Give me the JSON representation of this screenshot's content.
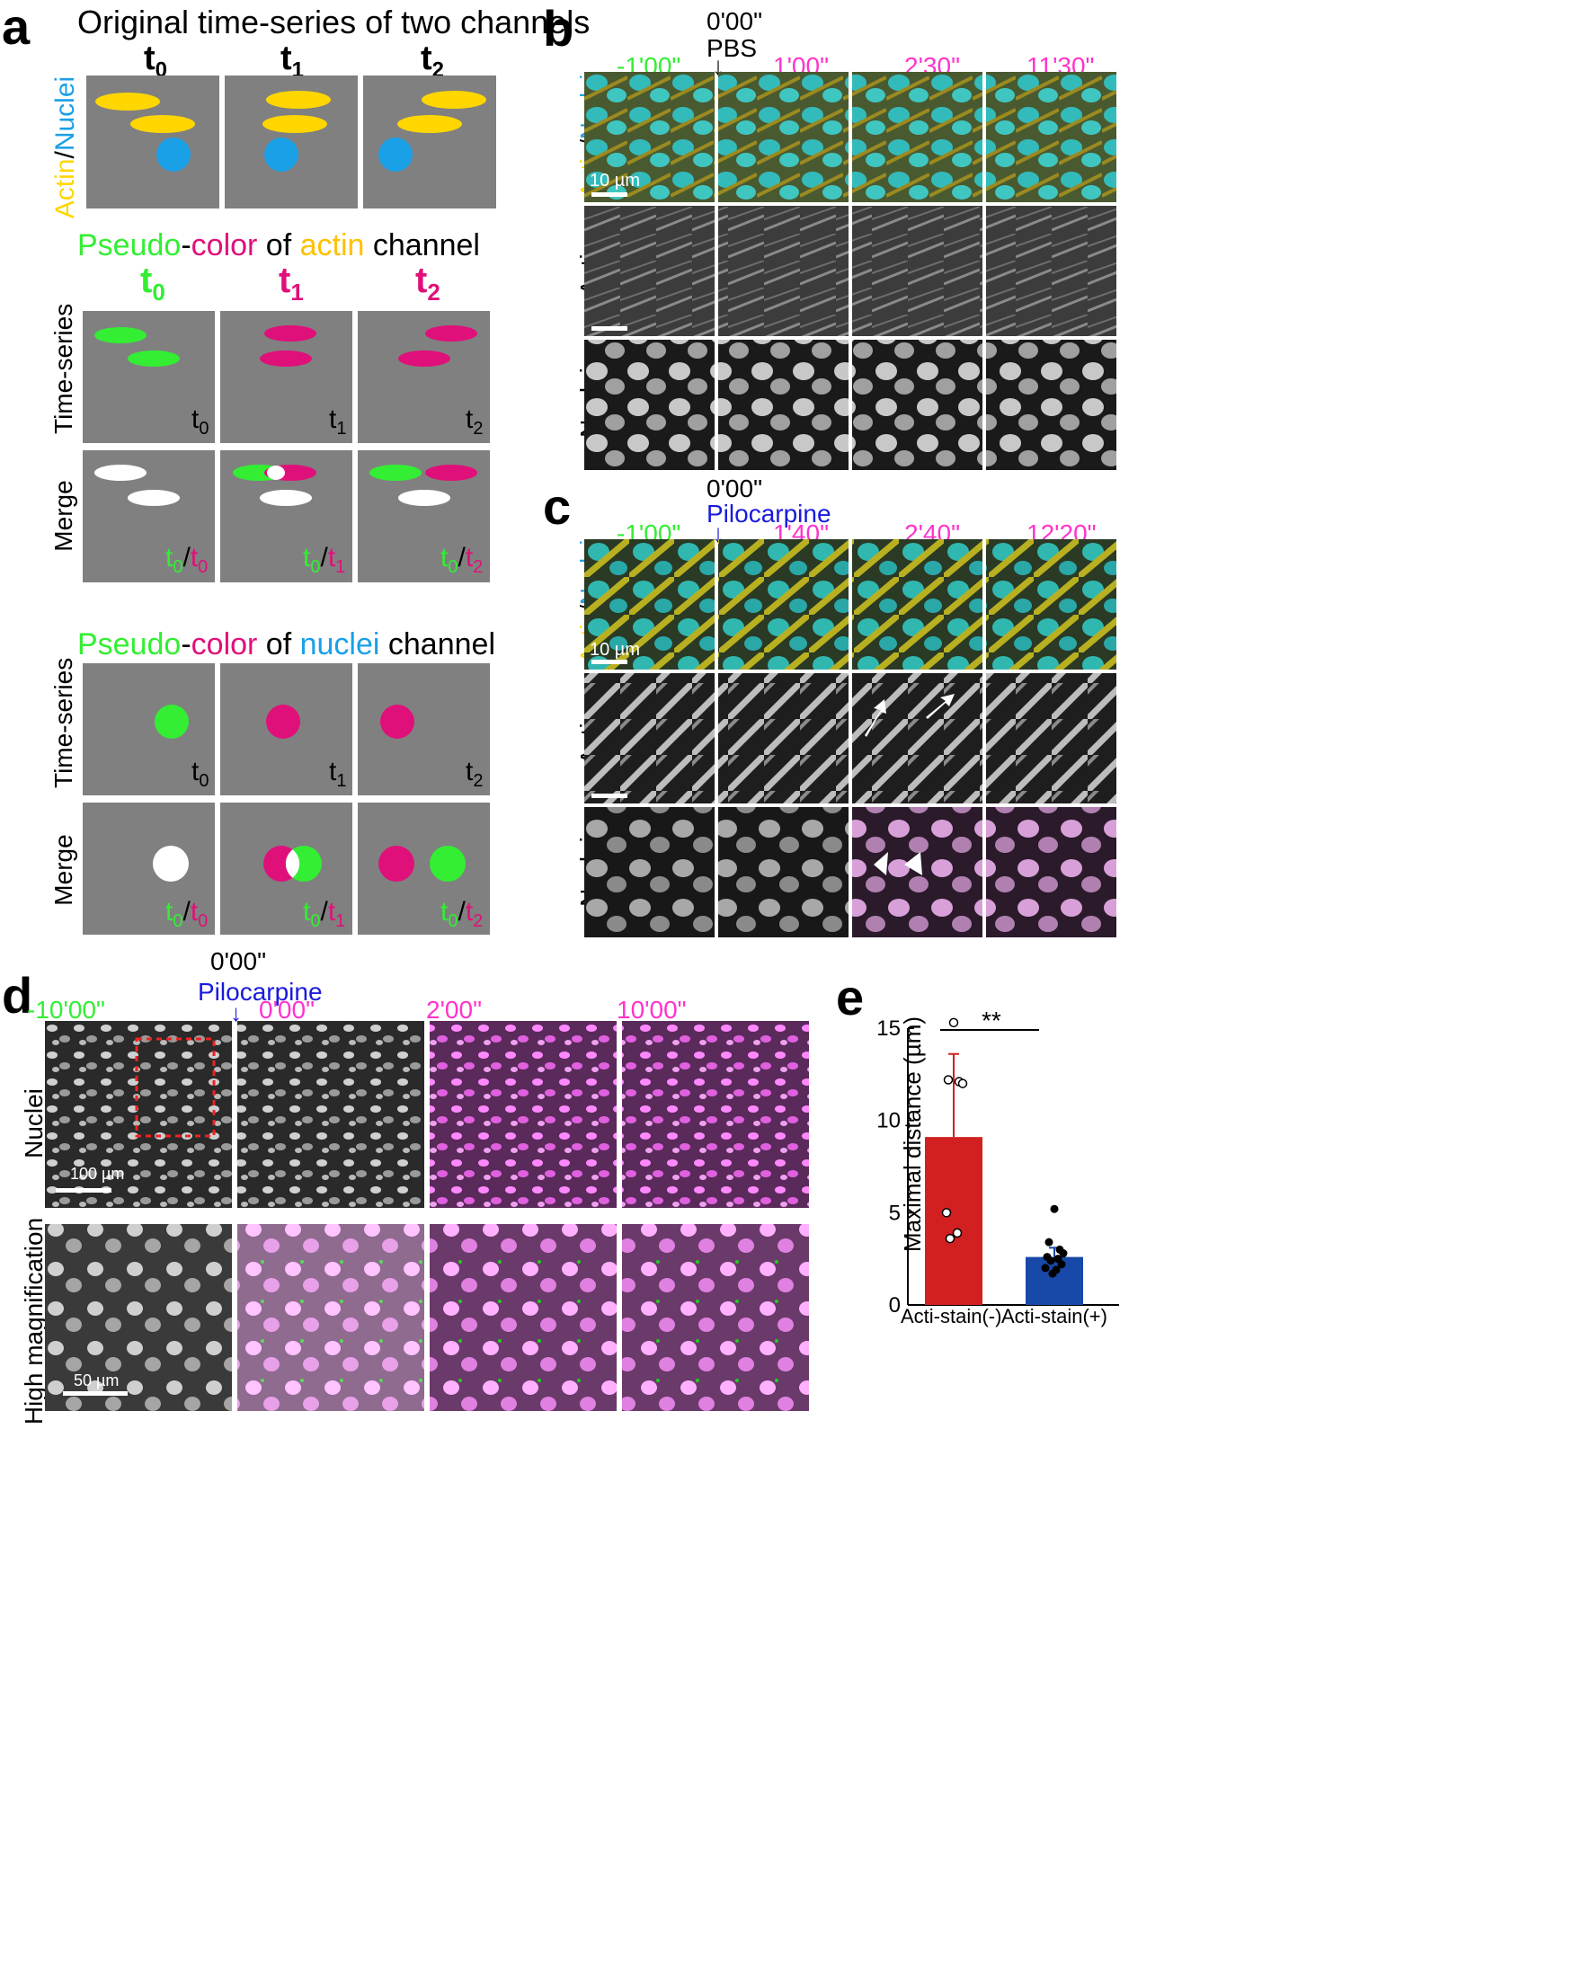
{
  "panel_a": {
    "letter": "a",
    "section1_title": "Original time-series of two channels",
    "time_labels": [
      "t",
      "t",
      "t"
    ],
    "time_subs": [
      "0",
      "1",
      "2"
    ],
    "ylabel_actin": "Actin",
    "ylabel_slash": "/",
    "ylabel_nuclei": "Nuclei",
    "section2_title": {
      "pseudo": "Pseudo",
      "dash": "-",
      "color": "color",
      "of": " of ",
      "channel_name": "actin",
      "channel": " channel"
    },
    "section3_title": {
      "pseudo": "Pseudo",
      "dash": "-",
      "color": "color",
      "of": " of ",
      "channel_name": "nuclei",
      "channel": " channel"
    },
    "row_labels": [
      "Time-series",
      "Merge"
    ],
    "corner_labels": [
      "t",
      "t",
      "t"
    ],
    "merge_labels": [
      {
        "a": "t",
        "as": "0",
        "sep": "/",
        "b": "t",
        "bs": "0"
      },
      {
        "a": "t",
        "as": "0",
        "sep": "/",
        "b": "t",
        "bs": "1"
      },
      {
        "a": "t",
        "as": "0",
        "sep": "/",
        "b": "t",
        "bs": "2"
      }
    ],
    "colors": {
      "actin": "#ffd600",
      "nuclei": "#1aa0e6",
      "green": "#33ee33",
      "magenta": "#e0107a",
      "panel": "#808080"
    }
  },
  "panel_b": {
    "letter": "b",
    "event_time": "0'00\"",
    "event": "PBS",
    "times": [
      "-1'00\"",
      "1'00\"",
      "2'30\"",
      "11'30\""
    ],
    "rows": [
      "Actin",
      "Nuclei"
    ],
    "merge_label": {
      "actin": "Actin",
      "slash": "/",
      "nuclei": "Nuclei"
    },
    "scale_bar": "10 µm"
  },
  "panel_c": {
    "letter": "c",
    "event_time": "0'00\"",
    "event": "Pilocarpine",
    "times": [
      "-1'00\"",
      "1'40\"",
      "2'40\"",
      "12'20\""
    ],
    "rows": [
      "Actin",
      "Nuclei"
    ],
    "merge_label": {
      "actin": "Actin",
      "slash": "/",
      "nuclei": "Nuclei"
    },
    "scale_bar": "10 µm"
  },
  "panel_d": {
    "letter": "d",
    "event_time": "0'00\"",
    "event": "Pilocarpine",
    "times": [
      "-10'00\"",
      "0'00\"",
      "2'00\"",
      "10'00\""
    ],
    "rows": [
      "Nuclei",
      "High magnification"
    ],
    "scale_bar_1": "100 µm",
    "scale_bar_2": "50 µm"
  },
  "panel_e": {
    "letter": "e",
    "significance": "**",
    "chart_data": {
      "type": "bar",
      "categories": [
        "Acti-stain(-)",
        "Acti-stain(+)"
      ],
      "values": [
        9.1,
        2.6
      ],
      "errors": [
        4.5,
        0.5
      ],
      "points": [
        [
          15.3,
          12.2,
          12.1,
          12.0,
          5.0,
          3.9,
          3.6
        ],
        [
          5.2,
          3.4,
          3.0,
          2.8,
          2.6,
          2.5,
          2.4,
          2.2,
          2.0,
          1.9,
          1.7
        ]
      ],
      "bar_colors": [
        "#d21f1f",
        "#1848a8"
      ],
      "ylabel": "Maximal distance  (µm)",
      "ylim": [
        0,
        15
      ],
      "yticks": [
        "0",
        "5",
        "10",
        "15"
      ]
    }
  }
}
